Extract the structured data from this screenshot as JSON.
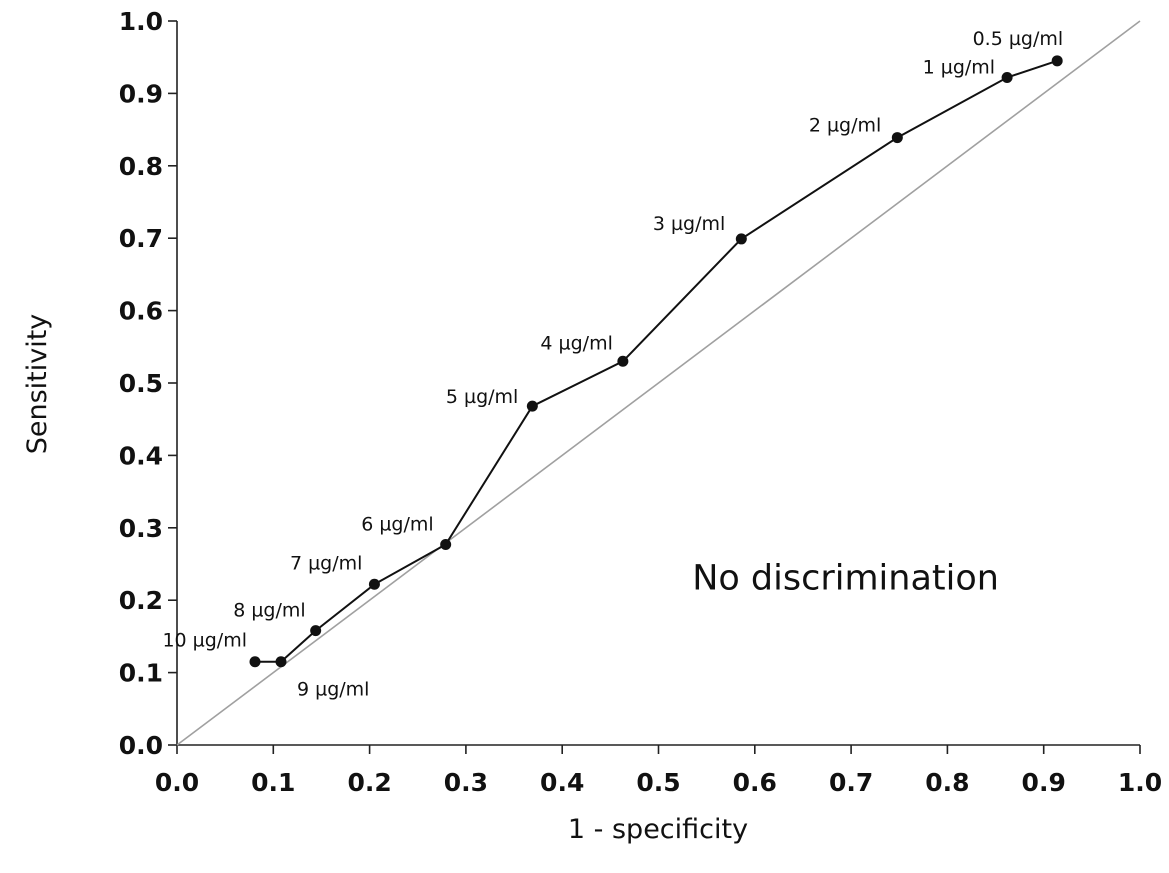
{
  "chart_data": {
    "type": "line",
    "title": "",
    "xlabel": "1 - specificity",
    "ylabel": "Sensitivity",
    "xlim": [
      0.0,
      1.0
    ],
    "ylim": [
      0.0,
      1.0
    ],
    "xticks": [
      "0.0",
      "0.1",
      "0.2",
      "0.3",
      "0.4",
      "0.5",
      "0.6",
      "0.7",
      "0.8",
      "0.9",
      "1.0"
    ],
    "yticks": [
      "0.0",
      "0.1",
      "0.2",
      "0.3",
      "0.4",
      "0.5",
      "0.6",
      "0.7",
      "0.8",
      "0.9",
      "1.0"
    ],
    "grid": false,
    "legend": "none",
    "series": [
      {
        "points": [
          {
            "label": "10 µg/ml",
            "x": 0.081,
            "y": 0.115
          },
          {
            "label": "9 µg/ml",
            "x": 0.108,
            "y": 0.115
          },
          {
            "label": "8 µg/ml",
            "x": 0.144,
            "y": 0.158
          },
          {
            "label": "7 µg/ml",
            "x": 0.205,
            "y": 0.222
          },
          {
            "label": "6 µg/ml",
            "x": 0.279,
            "y": 0.277
          },
          {
            "label": "5 µg/ml",
            "x": 0.369,
            "y": 0.468
          },
          {
            "label": "4 µg/ml",
            "x": 0.463,
            "y": 0.53
          },
          {
            "label": "3 µg/ml",
            "x": 0.586,
            "y": 0.699
          },
          {
            "label": "2 µg/ml",
            "x": 0.748,
            "y": 0.839
          },
          {
            "label": "1 µg/ml",
            "x": 0.862,
            "y": 0.922
          },
          {
            "label": "0.5 µg/ml",
            "x": 0.914,
            "y": 0.945
          }
        ]
      }
    ],
    "reference_line": {
      "from": [
        0.0,
        0.0
      ],
      "to": [
        1.0,
        1.0
      ]
    },
    "annotations": [
      {
        "text": "No discrimination",
        "x": 0.535,
        "y": 0.215
      }
    ],
    "colors": {
      "series": "#111111",
      "reference": "#a0a0a0",
      "axis": "#222222"
    }
  }
}
